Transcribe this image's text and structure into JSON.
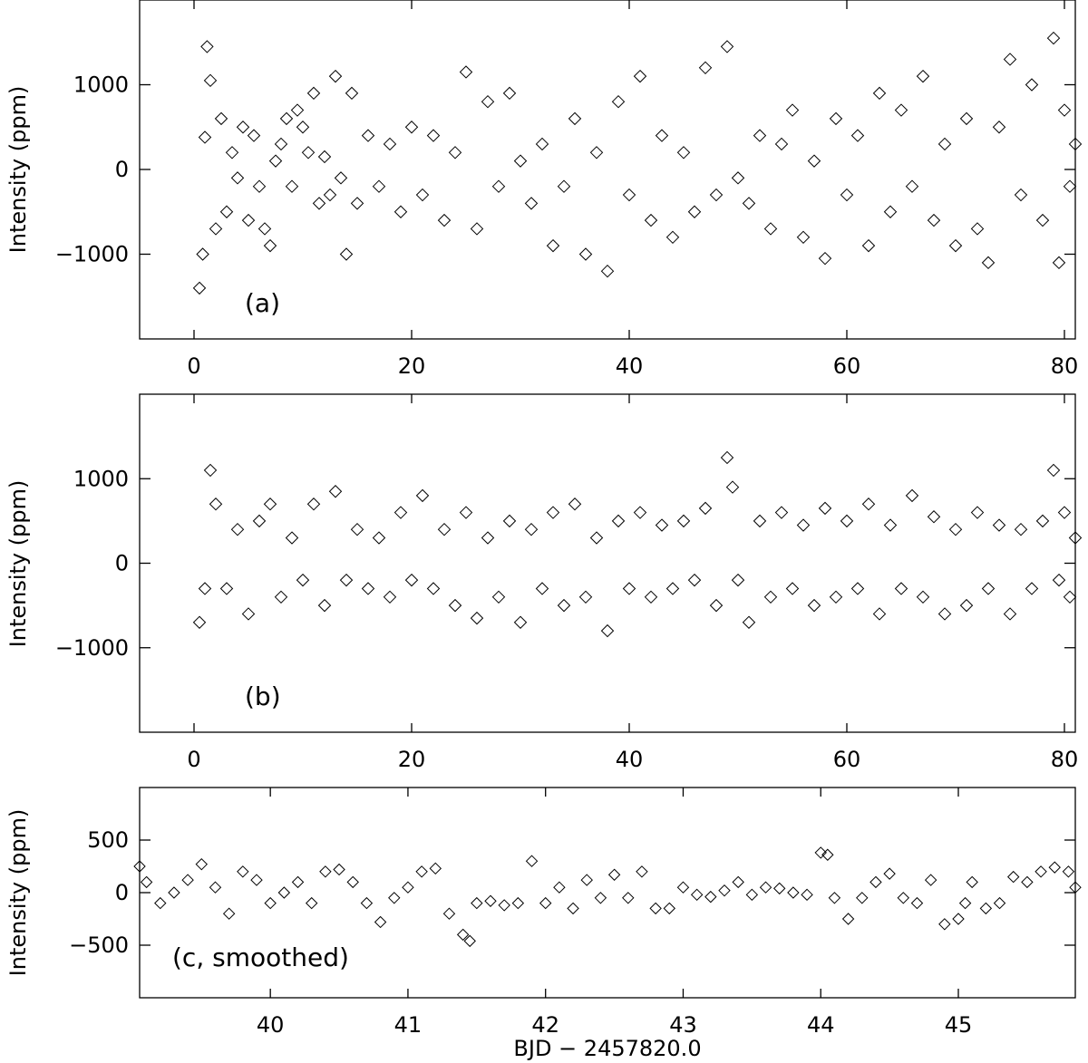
{
  "chart_data": [
    {
      "type": "scatter",
      "panel_label": "(a)",
      "ylabel": "Intensity (ppm)",
      "xlabel": "",
      "xlim": [
        -5,
        81
      ],
      "ylim": [
        -2000,
        2000
      ],
      "x_ticks": [
        0,
        20,
        40,
        60,
        80
      ],
      "y_ticks": [
        -1000,
        0,
        1000
      ],
      "x_tick_labels": [
        "0",
        "20",
        "40",
        "60",
        "80"
      ],
      "y_tick_labels": [
        "−1000",
        "0",
        "1000"
      ],
      "marker": "diamond",
      "grid": false,
      "series": [
        {
          "x": [
            0.5,
            0.8,
            1.0,
            1.2,
            1.5,
            2.0,
            2.5,
            3.0,
            3.5,
            4.0,
            4.5,
            5.0,
            5.5,
            6.0,
            6.5,
            7.0,
            7.5,
            8.0,
            8.5,
            9.0,
            9.5,
            10.0,
            10.5,
            11.0,
            11.5,
            12.0,
            12.5,
            13.0,
            13.5,
            14.0,
            14.5,
            15.0,
            16.0,
            17.0,
            18.0,
            19.0,
            20.0,
            21.0,
            22.0,
            23.0,
            24.0,
            25.0,
            26.0,
            27.0,
            28.0,
            29.0,
            30.0,
            31.0,
            32.0,
            33.0,
            34.0,
            35.0,
            36.0,
            37.0,
            38.0,
            39.0,
            40.0,
            41.0,
            42.0,
            43.0,
            44.0,
            45.0,
            46.0,
            47.0,
            48.0,
            49.0,
            50.0,
            51.0,
            52.0,
            53.0,
            54.0,
            55.0,
            56.0,
            57.0,
            58.0,
            59.0,
            60.0,
            61.0,
            62.0,
            63.0,
            64.0,
            65.0,
            66.0,
            67.0,
            68.0,
            69.0,
            70.0,
            71.0,
            72.0,
            73.0,
            74.0,
            75.0,
            76.0,
            77.0,
            78.0,
            79.0,
            79.5,
            80.0,
            80.5,
            81.0
          ],
          "y": [
            -1400,
            -1000,
            380,
            1450,
            1050,
            -700,
            600,
            -500,
            200,
            -100,
            500,
            -600,
            400,
            -200,
            -700,
            -900,
            100,
            300,
            600,
            -200,
            700,
            500,
            200,
            900,
            -400,
            150,
            -300,
            1100,
            -100,
            -1000,
            900,
            -400,
            400,
            -200,
            300,
            -500,
            500,
            -300,
            400,
            -600,
            200,
            1150,
            -700,
            800,
            -200,
            900,
            100,
            -400,
            300,
            -900,
            -200,
            600,
            -1000,
            200,
            -1200,
            800,
            -300,
            1100,
            -600,
            400,
            -800,
            200,
            -500,
            1200,
            -300,
            1450,
            -100,
            -400,
            400,
            -700,
            300,
            700,
            -800,
            100,
            -1050,
            600,
            -300,
            400,
            -900,
            900,
            -500,
            700,
            -200,
            1100,
            -600,
            300,
            -900,
            600,
            -700,
            -1100,
            500,
            1300,
            -300,
            1000,
            -600,
            1550,
            -1100,
            700,
            -200,
            300
          ]
        }
      ]
    },
    {
      "type": "scatter",
      "panel_label": "(b)",
      "ylabel": "Intensity (ppm)",
      "xlabel": "",
      "xlim": [
        -5,
        81
      ],
      "ylim": [
        -2000,
        2000
      ],
      "x_ticks": [
        0,
        20,
        40,
        60,
        80
      ],
      "y_ticks": [
        -1000,
        0,
        1000
      ],
      "x_tick_labels": [
        "0",
        "20",
        "40",
        "60",
        "80"
      ],
      "y_tick_labels": [
        "−1000",
        "0",
        "1000"
      ],
      "marker": "diamond",
      "grid": false,
      "series": [
        {
          "x": [
            0.5,
            1.0,
            1.5,
            2.0,
            3.0,
            4.0,
            5.0,
            6.0,
            7.0,
            8.0,
            9.0,
            10.0,
            11.0,
            12.0,
            13.0,
            14.0,
            15.0,
            16.0,
            17.0,
            18.0,
            19.0,
            20.0,
            21.0,
            22.0,
            23.0,
            24.0,
            25.0,
            26.0,
            27.0,
            28.0,
            29.0,
            30.0,
            31.0,
            32.0,
            33.0,
            34.0,
            35.0,
            36.0,
            37.0,
            38.0,
            39.0,
            40.0,
            41.0,
            42.0,
            43.0,
            44.0,
            45.0,
            46.0,
            47.0,
            48.0,
            49.0,
            49.5,
            50.0,
            51.0,
            52.0,
            53.0,
            54.0,
            55.0,
            56.0,
            57.0,
            58.0,
            59.0,
            60.0,
            61.0,
            62.0,
            63.0,
            64.0,
            65.0,
            66.0,
            67.0,
            68.0,
            69.0,
            70.0,
            71.0,
            72.0,
            73.0,
            74.0,
            75.0,
            76.0,
            77.0,
            78.0,
            79.0,
            79.5,
            80.0,
            80.5,
            81.0
          ],
          "y": [
            -700,
            -300,
            1100,
            700,
            -300,
            400,
            -600,
            500,
            700,
            -400,
            300,
            -200,
            700,
            -500,
            850,
            -200,
            400,
            -300,
            300,
            -400,
            600,
            -200,
            800,
            -300,
            400,
            -500,
            600,
            -650,
            300,
            -400,
            500,
            -700,
            400,
            -300,
            600,
            -500,
            700,
            -400,
            300,
            -800,
            500,
            -300,
            600,
            -400,
            450,
            -300,
            500,
            -200,
            650,
            -500,
            1250,
            900,
            -200,
            -700,
            500,
            -400,
            600,
            -300,
            450,
            -500,
            650,
            -400,
            500,
            -300,
            700,
            -600,
            450,
            -300,
            800,
            -400,
            550,
            -600,
            400,
            -500,
            600,
            -300,
            450,
            -600,
            400,
            -300,
            500,
            1100,
            -200,
            600,
            -400,
            300
          ]
        }
      ]
    },
    {
      "type": "scatter",
      "panel_label": "(c, smoothed)",
      "ylabel": "Intensity (ppm)",
      "xlabel": "BJD − 2457820.0",
      "xlim": [
        39.05,
        45.85
      ],
      "ylim": [
        -1000,
        1000
      ],
      "x_ticks": [
        40,
        41,
        42,
        43,
        44,
        45
      ],
      "y_ticks": [
        -500,
        0,
        500
      ],
      "x_tick_labels": [
        "40",
        "41",
        "42",
        "43",
        "44",
        "45"
      ],
      "y_tick_labels": [
        "−500",
        "0",
        "500"
      ],
      "marker": "diamond",
      "grid": false,
      "series": [
        {
          "x": [
            39.05,
            39.1,
            39.2,
            39.3,
            39.4,
            39.5,
            39.6,
            39.7,
            39.8,
            39.9,
            40.0,
            40.1,
            40.2,
            40.3,
            40.4,
            40.5,
            40.6,
            40.7,
            40.8,
            40.9,
            41.0,
            41.1,
            41.2,
            41.3,
            41.4,
            41.45,
            41.5,
            41.6,
            41.7,
            41.8,
            41.9,
            42.0,
            42.1,
            42.2,
            42.3,
            42.4,
            42.5,
            42.6,
            42.7,
            42.8,
            42.9,
            43.0,
            43.1,
            43.2,
            43.3,
            43.4,
            43.5,
            43.6,
            43.7,
            43.8,
            43.9,
            44.0,
            44.05,
            44.1,
            44.2,
            44.3,
            44.4,
            44.5,
            44.6,
            44.7,
            44.8,
            44.9,
            45.0,
            45.05,
            45.1,
            45.2,
            45.3,
            45.4,
            45.5,
            45.6,
            45.7,
            45.8,
            45.85
          ],
          "y": [
            250,
            100,
            -100,
            0,
            120,
            270,
            50,
            -200,
            200,
            120,
            -100,
            0,
            100,
            -100,
            200,
            220,
            100,
            -100,
            -280,
            -50,
            50,
            200,
            230,
            -200,
            -400,
            -460,
            -100,
            -80,
            -120,
            -100,
            300,
            -100,
            50,
            -150,
            120,
            -50,
            170,
            -50,
            200,
            -150,
            -150,
            50,
            -20,
            -40,
            20,
            100,
            -20,
            50,
            40,
            0,
            -20,
            380,
            360,
            -50,
            -250,
            -50,
            100,
            180,
            -50,
            -100,
            120,
            -300,
            -250,
            -100,
            100,
            -150,
            -100,
            150,
            100,
            200,
            240,
            200,
            50
          ]
        }
      ]
    }
  ]
}
